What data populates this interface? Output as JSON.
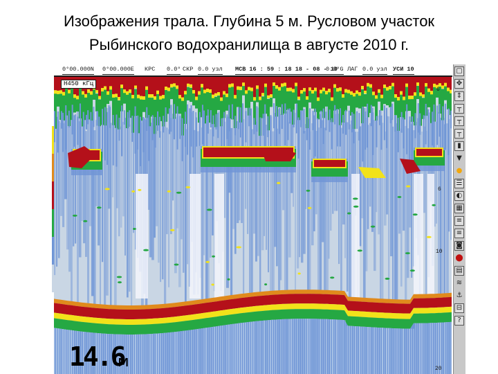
{
  "slide": {
    "title_line1": "Изображения трала. Глубина 5 м. Русловом участок",
    "title_line2": "Рыбинского водохранилища в августе 2010 г."
  },
  "status_bar": {
    "latitude": "0°00.000N",
    "longitude": "0°00.000E",
    "course": "КРС",
    "course_value": "0.0°",
    "speed_label": "СКР",
    "speed_value": "0.0 узл",
    "time_date": "МСВ 16 : 59 : 18  18 - 08 - 10",
    "angle": "0.0°G",
    "log_label": "ЛАГ",
    "log_value": "0.0 узл",
    "gain": "УСИ 10"
  },
  "sounder": {
    "frequency_label": "Н450 кГц",
    "depth_value": "14.6",
    "depth_unit": "м",
    "tick_top": "6",
    "tick_mid1": "6",
    "tick_mid2": "10",
    "tick_bottom": "20",
    "colors": {
      "water": "#c9d6e4",
      "weak": "#6f95d6",
      "medium": "#25a843",
      "strong": "#f2e21a",
      "orange": "#e08a1c",
      "max": "#b4101a"
    },
    "scale_colors": [
      "#f2e21a",
      "#e08a1c",
      "#b4101a",
      "#25a843",
      "#6f95d6",
      "#c9d6e4"
    ]
  },
  "toolbar": {
    "icons": [
      "window-icon",
      "pan-icon",
      "expand-icon",
      "ruler-icon",
      "ruler-icon",
      "ruler-icon",
      "bar-icon",
      "triangle-icon",
      "brightness-icon",
      "menu-icon",
      "contrast-icon",
      "grid-icon",
      "list-icon",
      "list-icon",
      "photo-icon",
      "info-icon",
      "chart-icon",
      "layers-icon",
      "anchor-icon",
      "level-icon",
      "help-icon"
    ]
  }
}
